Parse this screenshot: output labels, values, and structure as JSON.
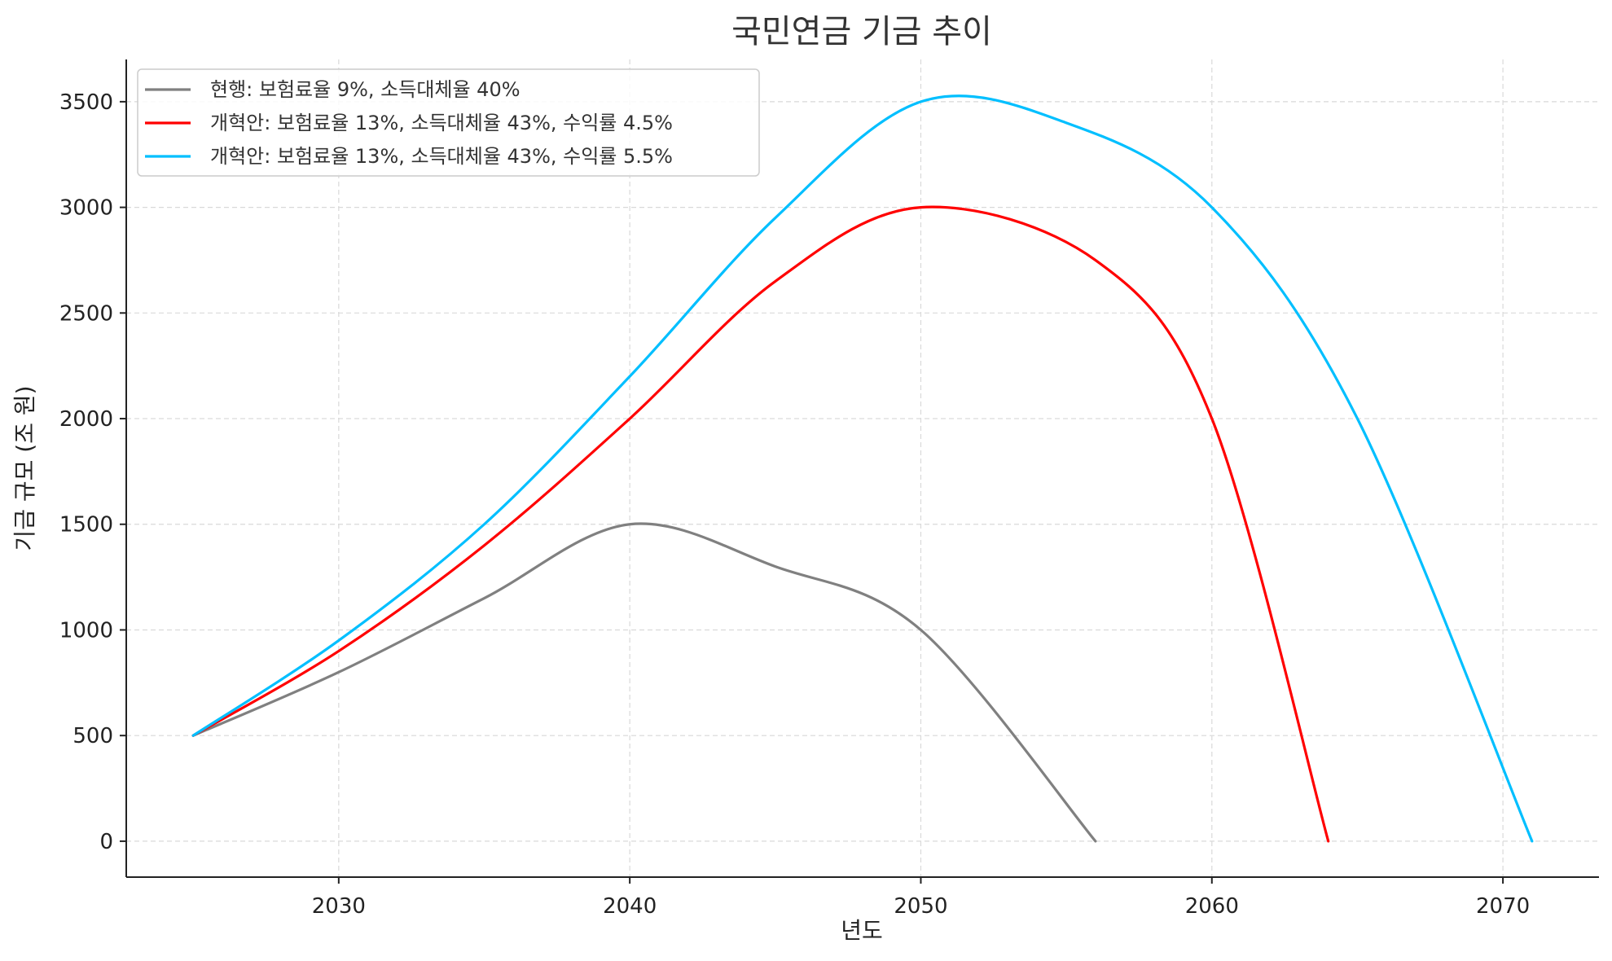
{
  "chart_data": {
    "type": "line",
    "title": "국민연금 기금 추이",
    "xlabel": "년도",
    "ylabel": "기금 규모 (조 원)",
    "xlim": [
      2022.7,
      2073.3
    ],
    "ylim": [
      -170,
      3700
    ],
    "xticks": [
      2030,
      2040,
      2050,
      2060,
      2070
    ],
    "yticks": [
      0,
      500,
      1000,
      1500,
      2000,
      2500,
      3000,
      3500
    ],
    "grid": true,
    "legend_position": "top-left",
    "series": [
      {
        "name": "현행: 보험료율 9%, 소득대체율 40%",
        "color": "#808080",
        "x": [
          2025,
          2030,
          2035,
          2040,
          2045,
          2050,
          2056
        ],
        "y": [
          500,
          800,
          1150,
          1500,
          1300,
          1000,
          0
        ]
      },
      {
        "name": "개혁안: 보험료율 13%, 소득대체율 43%, 수익률 4.5%",
        "color": "#ff0000",
        "x": [
          2025,
          2030,
          2035,
          2040,
          2045,
          2050,
          2056,
          2060,
          2064
        ],
        "y": [
          500,
          900,
          1400,
          2000,
          2650,
          3000,
          2750,
          2000,
          0
        ]
      },
      {
        "name": "개혁안: 보험료율 13%, 소득대체율 43%, 수익률 5.5%",
        "color": "#00bfff",
        "x": [
          2025,
          2030,
          2035,
          2040,
          2045,
          2050,
          2055,
          2060,
          2065,
          2071
        ],
        "y": [
          500,
          950,
          1500,
          2200,
          2950,
          3500,
          3400,
          3000,
          2000,
          0
        ]
      }
    ]
  }
}
